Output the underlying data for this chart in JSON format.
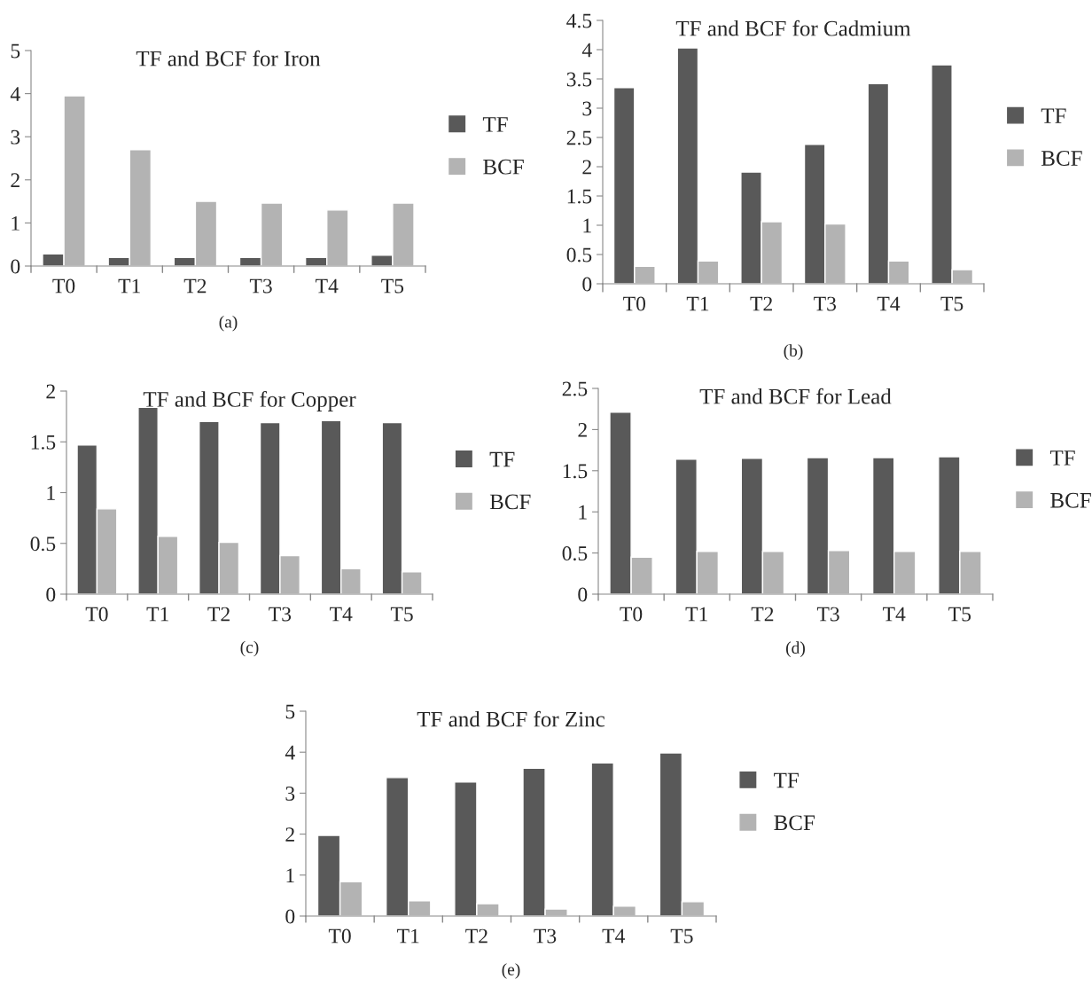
{
  "chart_data": [
    {
      "type": "bar",
      "title": "TF and BCF for Iron",
      "categories": [
        "T0",
        "T1",
        "T2",
        "T3",
        "T4",
        "T5"
      ],
      "series": [
        {
          "name": "TF",
          "color": "#595959",
          "values": [
            0.28,
            0.2,
            0.2,
            0.2,
            0.2,
            0.25
          ]
        },
        {
          "name": "BCF",
          "color": "#b3b3b3",
          "values": [
            3.95,
            2.7,
            1.5,
            1.46,
            1.3,
            1.46
          ]
        }
      ],
      "ylim": [
        0,
        5
      ],
      "yticks": [
        0,
        1,
        2,
        3,
        4,
        5
      ],
      "legend": "right",
      "grid": false,
      "annotations": [
        "(a)"
      ]
    },
    {
      "type": "bar",
      "title": "TF and BCF for Cadmium",
      "categories": [
        "T0",
        "T1",
        "T2",
        "T3",
        "T4",
        "T5"
      ],
      "series": [
        {
          "name": "TF",
          "color": "#595959",
          "values": [
            3.35,
            4.03,
            1.91,
            2.38,
            3.42,
            3.74
          ]
        },
        {
          "name": "BCF",
          "color": "#b3b3b3",
          "values": [
            0.3,
            0.39,
            1.06,
            1.02,
            0.39,
            0.24
          ]
        }
      ],
      "ylim": [
        0,
        4.5
      ],
      "yticks": [
        0,
        0.5,
        1,
        1.5,
        2,
        2.5,
        3,
        3.5,
        4,
        4.5
      ],
      "legend": "right",
      "grid": false,
      "annotations": [
        "(b)"
      ]
    },
    {
      "type": "bar",
      "title": "TF and BCF for Copper",
      "categories": [
        "T0",
        "T1",
        "T2",
        "T3",
        "T4",
        "T5"
      ],
      "series": [
        {
          "name": "TF",
          "color": "#595959",
          "values": [
            1.47,
            1.84,
            1.7,
            1.69,
            1.71,
            1.69
          ]
        },
        {
          "name": "BCF",
          "color": "#b3b3b3",
          "values": [
            0.84,
            0.57,
            0.51,
            0.38,
            0.25,
            0.22
          ]
        }
      ],
      "ylim": [
        0,
        2
      ],
      "yticks": [
        0,
        0.5,
        1,
        1.5,
        2
      ],
      "legend": "right",
      "grid": false,
      "annotations": [
        "(c)"
      ]
    },
    {
      "type": "bar",
      "title": "TF and BCF for Lead",
      "categories": [
        "T0",
        "T1",
        "T2",
        "T3",
        "T4",
        "T5"
      ],
      "series": [
        {
          "name": "TF",
          "color": "#595959",
          "values": [
            2.21,
            1.64,
            1.65,
            1.66,
            1.66,
            1.67
          ]
        },
        {
          "name": "BCF",
          "color": "#b3b3b3",
          "values": [
            0.45,
            0.52,
            0.52,
            0.53,
            0.52,
            0.52
          ]
        }
      ],
      "ylim": [
        0,
        2.5
      ],
      "yticks": [
        0,
        0.5,
        1,
        1.5,
        2,
        2.5
      ],
      "legend": "right",
      "grid": false,
      "annotations": [
        "(d)"
      ]
    },
    {
      "type": "bar",
      "title": "TF and BCF for Zinc",
      "categories": [
        "T0",
        "T1",
        "T2",
        "T3",
        "T4",
        "T5"
      ],
      "series": [
        {
          "name": "TF",
          "color": "#595959",
          "values": [
            1.97,
            3.38,
            3.27,
            3.61,
            3.74,
            3.98
          ]
        },
        {
          "name": "BCF",
          "color": "#b3b3b3",
          "values": [
            0.84,
            0.37,
            0.3,
            0.17,
            0.24,
            0.35
          ]
        }
      ],
      "ylim": [
        0,
        5
      ],
      "yticks": [
        0,
        1,
        2,
        3,
        4,
        5
      ],
      "legend": "right",
      "grid": false,
      "annotations": [
        "(e)"
      ]
    }
  ]
}
